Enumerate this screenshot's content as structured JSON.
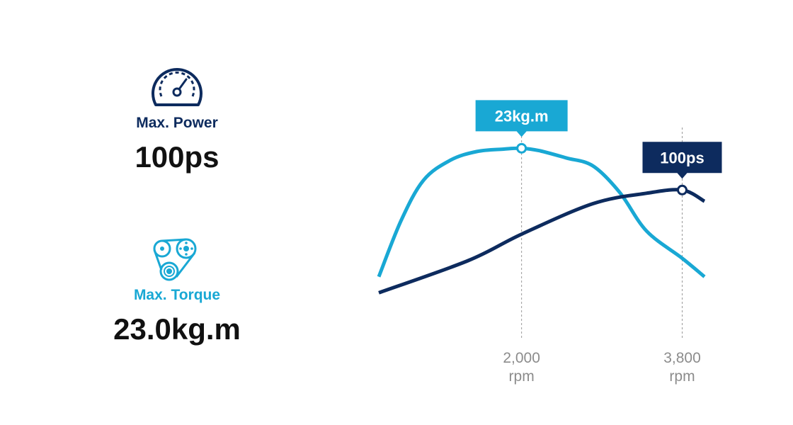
{
  "specs": {
    "power": {
      "label": "Max. Power",
      "value": "100ps",
      "icon": "speedometer-icon"
    },
    "torque": {
      "label": "Max. Torque",
      "value": "23.0kg.m",
      "icon": "belt-pulley-icon"
    }
  },
  "colors": {
    "power": "#0d2b5e",
    "torque": "#19a8d4",
    "guide": "#9a9a9a",
    "tick": "#8c8c8c"
  },
  "chart_data": {
    "type": "line",
    "xunit": "rpm",
    "xticks": [
      {
        "x": 2000,
        "value": "2,000",
        "unit": "rpm"
      },
      {
        "x": 3800,
        "value": "3,800",
        "unit": "rpm"
      }
    ],
    "xlim": [
      400,
      4050
    ],
    "series": [
      {
        "name": "torque",
        "color": "#19a8d4",
        "points": [
          [
            400,
            7
          ],
          [
            650,
            14
          ],
          [
            900,
            19
          ],
          [
            1200,
            21.5
          ],
          [
            1500,
            22.6
          ],
          [
            1800,
            22.9
          ],
          [
            2000,
            23
          ],
          [
            2200,
            22.7
          ],
          [
            2500,
            21.8
          ],
          [
            2800,
            20.8
          ],
          [
            3100,
            17.5
          ],
          [
            3400,
            12.7
          ],
          [
            3800,
            9.3
          ],
          [
            4050,
            7
          ]
        ],
        "peak": {
          "x": 2000,
          "label": "23kg.m"
        }
      },
      {
        "name": "power",
        "color": "#0d2b5e",
        "points": [
          [
            400,
            5
          ],
          [
            1400,
            9
          ],
          [
            2000,
            12.3
          ],
          [
            2800,
            16.1
          ],
          [
            3400,
            17.4
          ],
          [
            3800,
            17.8
          ],
          [
            4050,
            16.4
          ]
        ],
        "peak": {
          "x": 3800,
          "label": "100ps"
        }
      }
    ]
  }
}
